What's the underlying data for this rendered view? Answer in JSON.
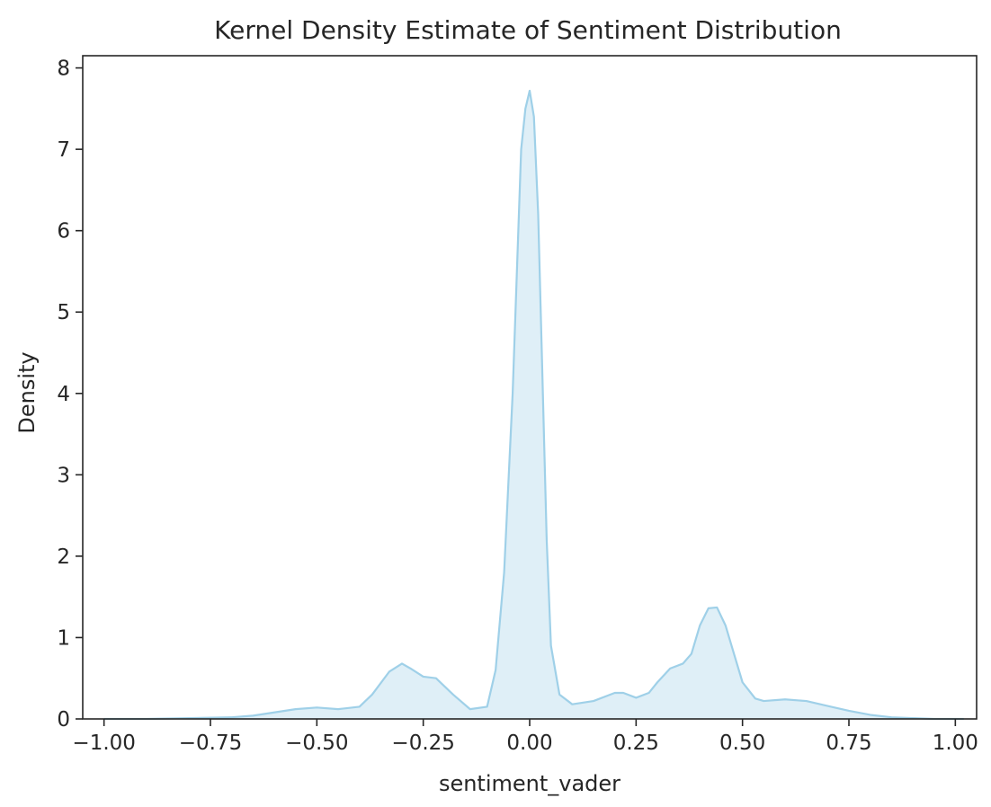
{
  "chart_data": {
    "type": "area",
    "title": "Kernel Density Estimate of Sentiment Distribution",
    "xlabel": "sentiment_vader",
    "ylabel": "Density",
    "xlim": [
      -1.05,
      1.05
    ],
    "ylim": [
      0,
      8.15
    ],
    "x_ticks": [
      -1.0,
      -0.75,
      -0.5,
      -0.25,
      0.0,
      0.25,
      0.5,
      0.75,
      1.0
    ],
    "x_tick_labels": [
      "−1.00",
      "−0.75",
      "−0.50",
      "−0.25",
      "0.00",
      "0.25",
      "0.50",
      "0.75",
      "1.00"
    ],
    "y_ticks": [
      0,
      1,
      2,
      3,
      4,
      5,
      6,
      7,
      8
    ],
    "y_tick_labels": [
      "0",
      "1",
      "2",
      "3",
      "4",
      "5",
      "6",
      "7",
      "8"
    ],
    "grid": false,
    "line_color": "#9fd0e8",
    "fill_color": "#dfeff7",
    "series": [
      {
        "x": [
          -1.0,
          -0.9,
          -0.8,
          -0.7,
          -0.65,
          -0.6,
          -0.55,
          -0.5,
          -0.45,
          -0.4,
          -0.37,
          -0.33,
          -0.3,
          -0.28,
          -0.25,
          -0.22,
          -0.18,
          -0.14,
          -0.1,
          -0.08,
          -0.06,
          -0.04,
          -0.03,
          -0.02,
          -0.01,
          0.0,
          0.01,
          0.02,
          0.03,
          0.04,
          0.05,
          0.07,
          0.1,
          0.15,
          0.2,
          0.22,
          0.25,
          0.28,
          0.3,
          0.33,
          0.36,
          0.38,
          0.4,
          0.42,
          0.44,
          0.46,
          0.48,
          0.5,
          0.53,
          0.55,
          0.6,
          0.65,
          0.7,
          0.75,
          0.8,
          0.85,
          0.9,
          0.95,
          1.0,
          1.02
        ],
        "y": [
          0.0,
          0.0,
          0.01,
          0.02,
          0.04,
          0.08,
          0.12,
          0.14,
          0.12,
          0.15,
          0.3,
          0.58,
          0.68,
          0.62,
          0.52,
          0.5,
          0.3,
          0.12,
          0.15,
          0.6,
          1.8,
          4.0,
          5.5,
          7.0,
          7.5,
          7.72,
          7.4,
          6.2,
          4.2,
          2.2,
          0.9,
          0.3,
          0.18,
          0.22,
          0.32,
          0.32,
          0.26,
          0.32,
          0.45,
          0.62,
          0.68,
          0.8,
          1.15,
          1.36,
          1.37,
          1.15,
          0.8,
          0.45,
          0.25,
          0.22,
          0.24,
          0.22,
          0.16,
          0.1,
          0.05,
          0.02,
          0.01,
          0.0,
          0.0,
          0.0
        ]
      }
    ]
  }
}
